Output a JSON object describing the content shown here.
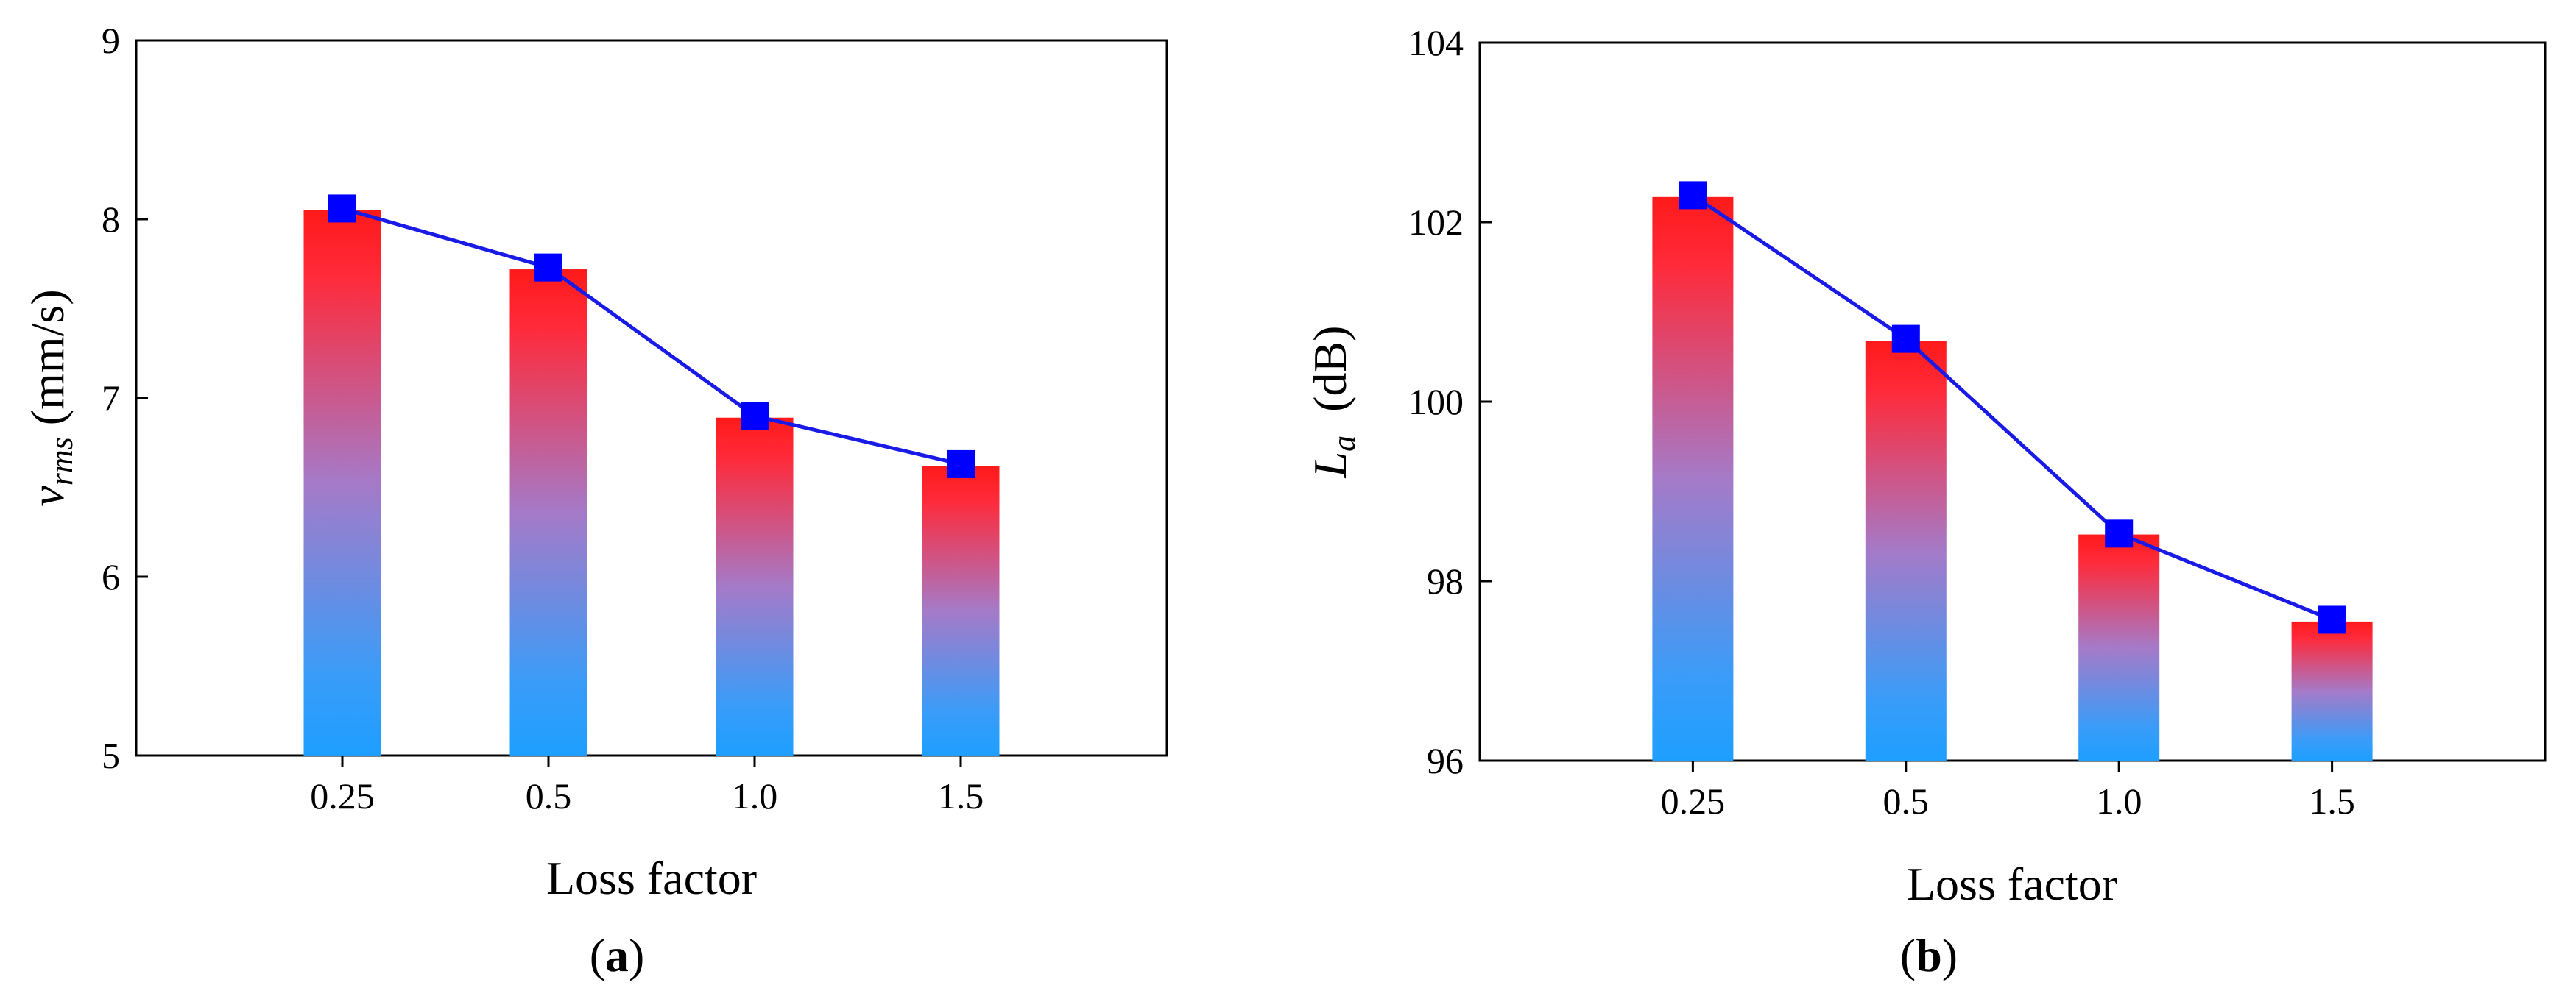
{
  "colors": {
    "bar_top": "#ff1a1a",
    "bar_mid": "#a57ac8",
    "bar_bottom": "#1e9fff",
    "line": "#1a1ae6",
    "marker": "#0000ff",
    "axis": "#000000"
  },
  "chart_data": [
    {
      "type": "bar",
      "panel_label": {
        "open": "(",
        "letter": "a",
        "close": ")"
      },
      "categories": [
        "0.25",
        "0.5",
        "1.0",
        "1.5"
      ],
      "values": [
        8.05,
        7.72,
        6.89,
        6.62
      ],
      "line_values": [
        8.06,
        7.73,
        6.9,
        6.63
      ],
      "xlabel": "Loss factor",
      "ylabel": {
        "symbol": "v",
        "subscript": "rms",
        "unit": " (mm/s)"
      },
      "ylim": [
        5,
        9
      ],
      "yticks": [
        "5",
        "6",
        "7",
        "8",
        "9"
      ],
      "grid": false
    },
    {
      "type": "bar",
      "panel_label": {
        "open": "(",
        "letter": "b",
        "close": ")"
      },
      "categories": [
        "0.25",
        "0.5",
        "1.0",
        "1.5"
      ],
      "values": [
        102.28,
        100.68,
        98.52,
        97.55
      ],
      "line_values": [
        102.3,
        100.7,
        98.53,
        97.57
      ],
      "xlabel": "Loss factor",
      "ylabel": {
        "symbol": "L",
        "subscript": "a",
        "unit": "  (dB)"
      },
      "ylim": [
        96,
        104
      ],
      "yticks": [
        "96",
        "98",
        "100",
        "102",
        "104"
      ],
      "grid": false
    }
  ]
}
